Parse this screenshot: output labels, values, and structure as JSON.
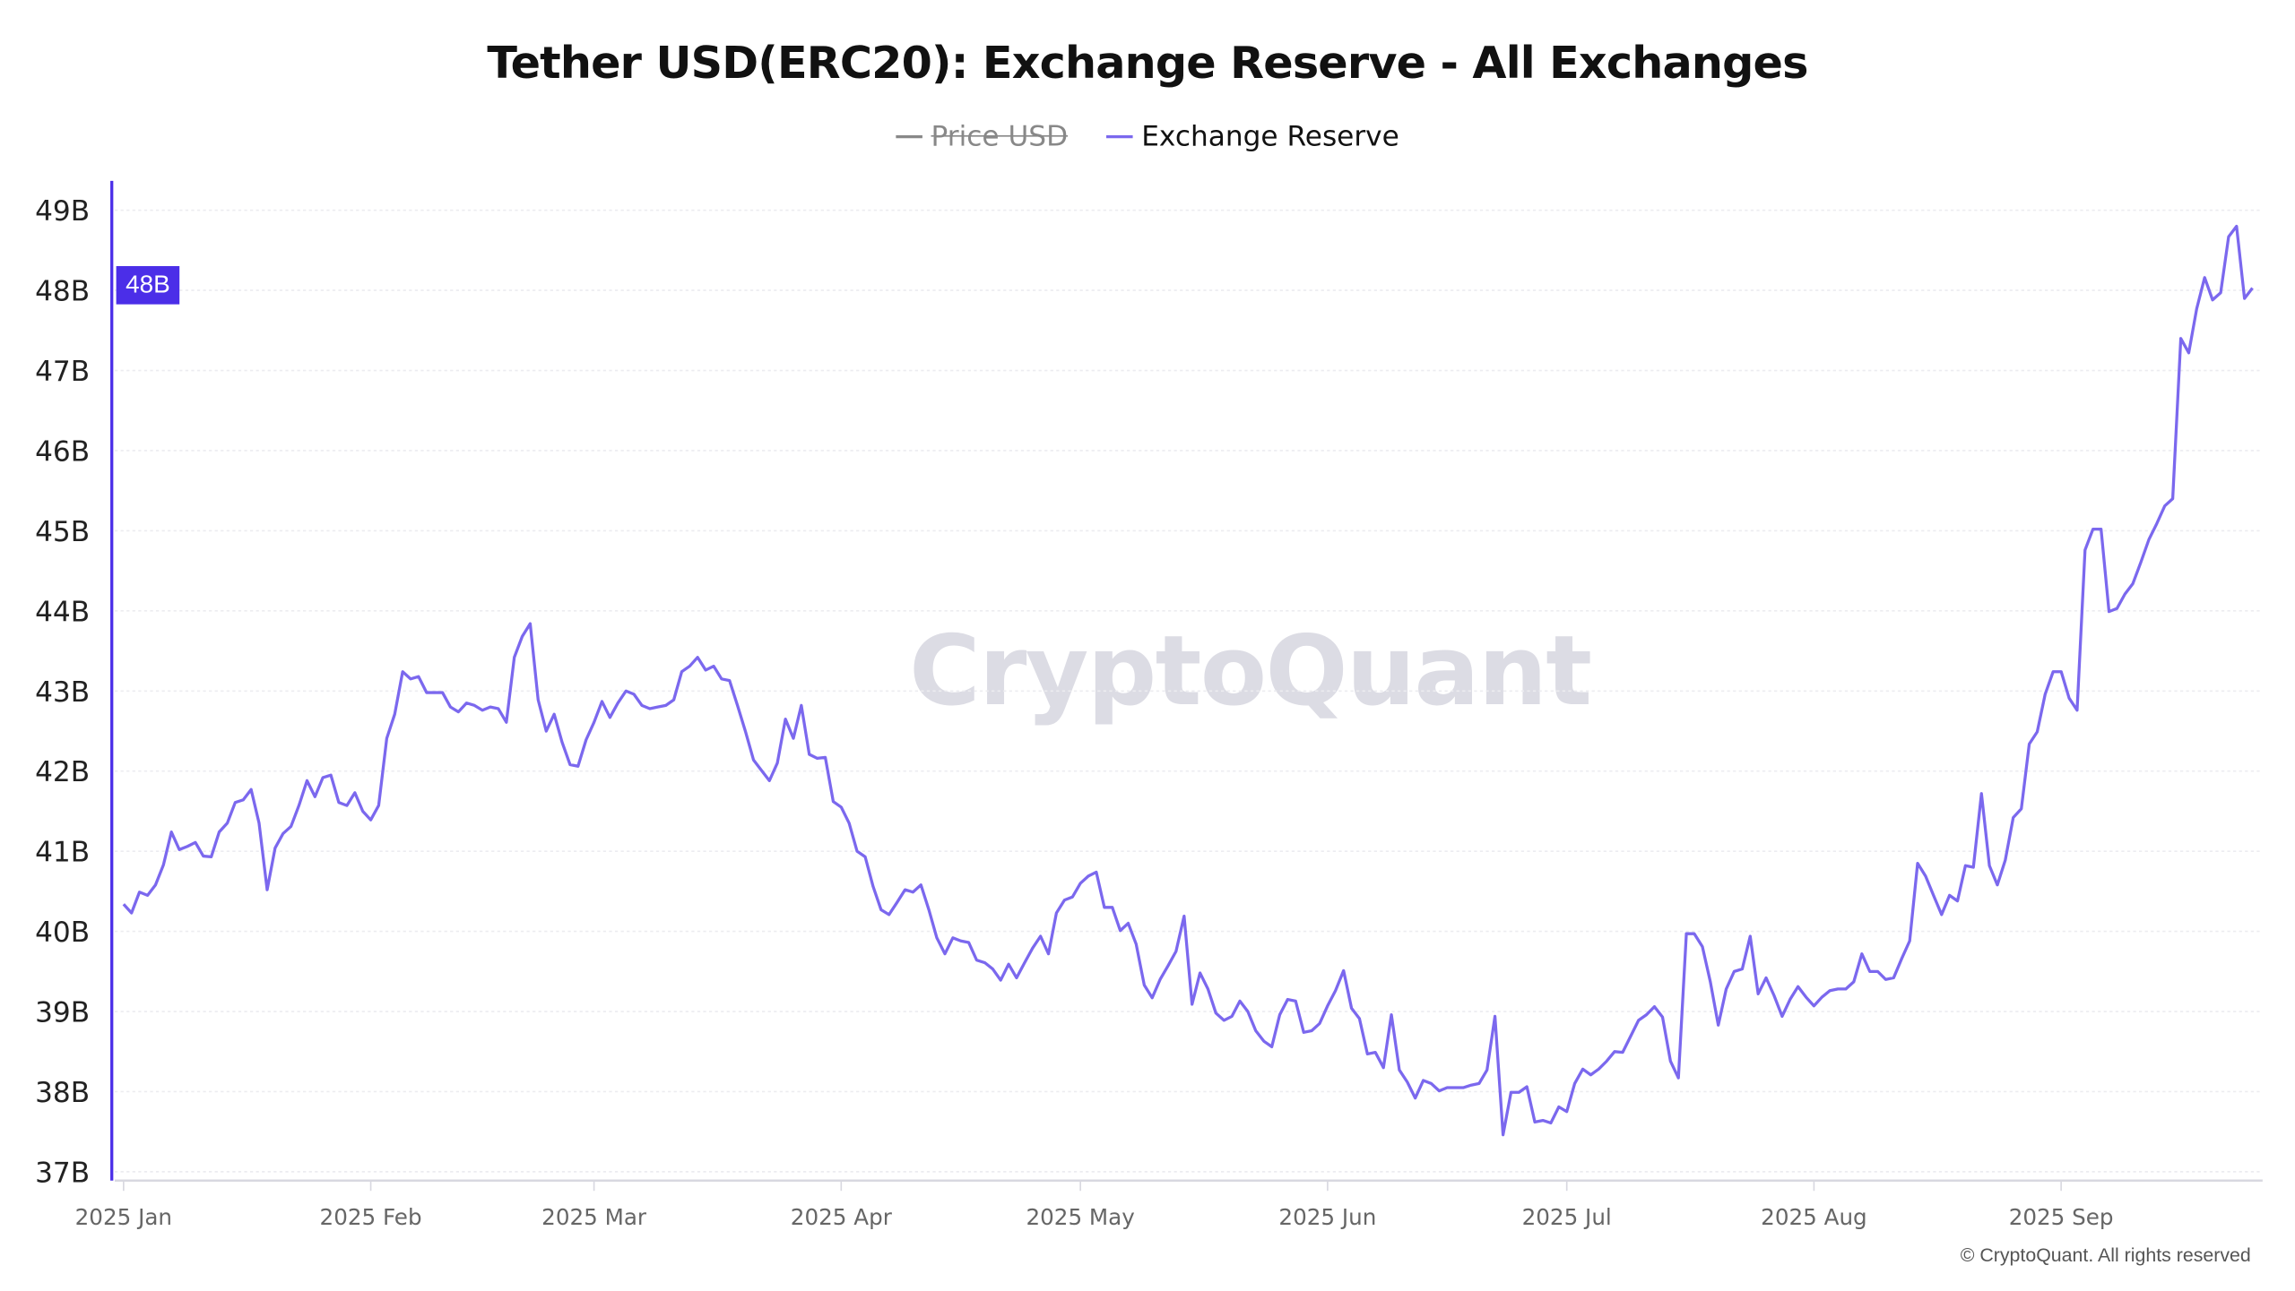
{
  "chart_data": {
    "type": "line",
    "title": "Tether USD(ERC20): Exchange Reserve - All Exchanges",
    "legend": [
      {
        "name": "Price USD",
        "color": "#888888",
        "hidden": true
      },
      {
        "name": "Exchange Reserve",
        "color": "#7b68ee",
        "hidden": false
      }
    ],
    "legend_placement": "top-center",
    "y_ticks": [
      "37B",
      "38B",
      "39B",
      "40B",
      "41B",
      "42B",
      "43B",
      "44B",
      "45B",
      "46B",
      "47B",
      "48B",
      "49B"
    ],
    "ylim": [
      37,
      49
    ],
    "y_unit": "B",
    "x_ticks": [
      "2025 Jan",
      "2025 Feb",
      "2025 Mar",
      "2025 Apr",
      "2025 May",
      "2025 Jun",
      "2025 Jul",
      "2025 Aug",
      "2025 Sep"
    ],
    "grid": true,
    "current_value_label": "48B",
    "accent_color": "#4b2ee8",
    "series": [
      {
        "name": "Exchange Reserve",
        "color": "#7b68ee",
        "daily_values_by_month": {
          "2025-01": [
            40.34,
            40.23,
            40.49,
            40.45,
            40.58,
            40.83,
            41.24,
            41.02,
            41.06,
            41.11,
            40.94,
            40.93,
            41.24,
            41.35,
            41.61,
            41.64,
            41.77,
            41.35,
            40.52,
            41.04,
            41.22,
            41.31,
            41.57,
            41.88,
            41.68,
            41.92,
            41.95,
            41.61,
            41.57,
            41.73,
            41.5
          ],
          "2025-02": [
            41.39,
            41.57,
            42.41,
            42.71,
            43.24,
            43.15,
            43.18,
            42.98,
            42.98,
            42.98,
            42.8,
            42.74,
            42.85,
            42.82,
            42.76,
            42.8,
            42.78,
            42.61,
            43.42,
            43.68,
            43.84,
            42.89,
            42.5,
            42.71,
            42.36,
            42.08,
            42.06,
            42.39
          ],
          "2025-03": [
            42.61,
            42.87,
            42.67,
            42.85,
            43.0,
            42.96,
            42.82,
            42.78,
            42.8,
            42.82,
            42.89,
            43.24,
            43.31,
            43.42,
            43.26,
            43.31,
            43.15,
            43.13,
            42.82,
            42.49,
            42.14,
            42.01,
            41.88,
            42.1,
            42.65,
            42.41,
            42.82,
            42.21,
            42.16,
            42.17,
            41.62
          ],
          "2025-04": [
            41.55,
            41.35,
            41.0,
            40.93,
            40.56,
            40.27,
            40.21,
            40.36,
            40.52,
            40.49,
            40.58,
            40.27,
            39.92,
            39.72,
            39.92,
            39.88,
            39.86,
            39.64,
            39.61,
            39.53,
            39.39,
            39.59,
            39.42,
            39.61,
            39.79,
            39.94,
            39.72,
            40.23,
            40.39,
            40.43
          ],
          "2025-05": [
            40.6,
            40.69,
            40.74,
            40.3,
            40.3,
            40.01,
            40.1,
            39.84,
            39.33,
            39.17,
            39.4,
            39.57,
            39.75,
            40.19,
            39.09,
            39.48,
            39.28,
            38.98,
            38.89,
            38.94,
            39.13,
            39.0,
            38.76,
            38.63,
            38.56,
            38.96,
            39.15,
            39.13,
            38.74,
            38.76,
            38.85
          ],
          "2025-06": [
            39.07,
            39.26,
            39.51,
            39.04,
            38.91,
            38.47,
            38.49,
            38.3,
            38.96,
            38.27,
            38.12,
            37.92,
            38.14,
            38.1,
            38.01,
            38.05,
            38.05,
            38.05,
            38.08,
            38.1,
            38.27,
            38.94,
            37.46,
            37.99,
            37.99,
            38.06,
            37.62,
            37.64,
            37.61,
            37.81
          ],
          "2025-07": [
            37.75,
            38.1,
            38.28,
            38.21,
            38.28,
            38.38,
            38.5,
            38.49,
            38.69,
            38.89,
            38.96,
            39.06,
            38.93,
            38.38,
            38.17,
            39.97,
            39.97,
            39.81,
            39.37,
            38.83,
            39.28,
            39.5,
            39.53,
            39.94,
            39.22,
            39.42,
            39.2,
            38.94,
            39.15,
            39.31,
            39.18
          ],
          "2025-08": [
            39.07,
            39.18,
            39.26,
            39.28,
            39.28,
            39.37,
            39.72,
            39.5,
            39.5,
            39.4,
            39.42,
            39.66,
            39.88,
            40.85,
            40.69,
            40.45,
            40.21,
            40.45,
            40.38,
            40.82,
            40.8,
            41.72,
            40.82,
            40.58,
            40.89,
            41.42,
            41.53,
            42.34,
            42.49,
            42.96,
            43.24
          ],
          "2025-09": [
            43.24,
            42.91,
            42.76,
            44.76,
            45.02,
            45.02,
            43.99,
            44.03,
            44.21,
            44.34,
            44.61,
            44.89,
            45.09,
            45.31,
            45.4,
            47.4,
            47.22,
            47.77,
            48.16,
            47.88,
            47.97,
            48.67,
            48.8,
            47.9,
            48.03
          ]
        }
      }
    ]
  },
  "watermark": "CryptoQuant",
  "copyright": "© CryptoQuant. All rights reserved"
}
